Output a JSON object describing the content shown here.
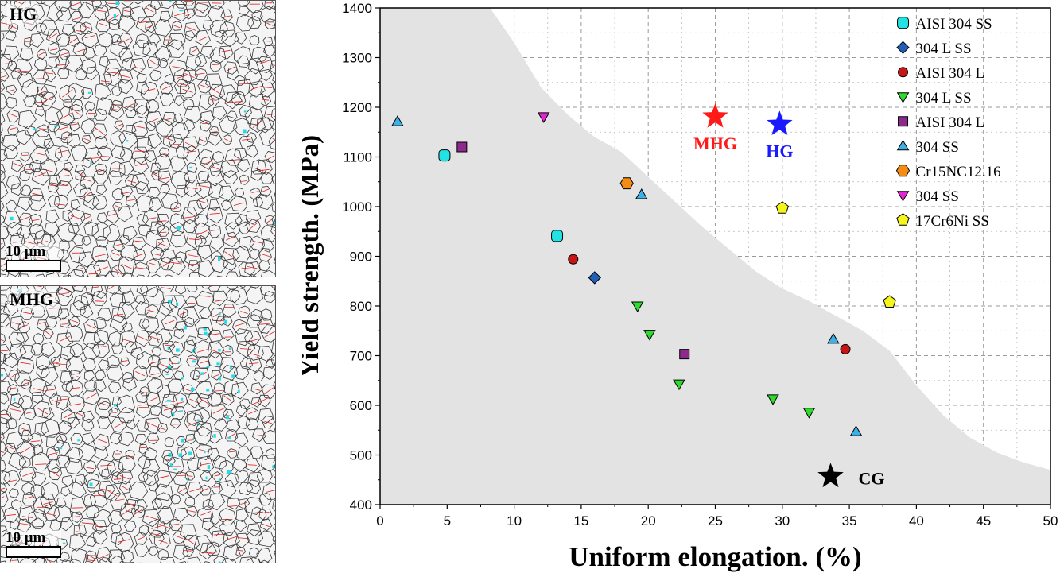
{
  "panels": [
    {
      "label": "HG",
      "scale": "10 μm"
    },
    {
      "label": "MHG",
      "scale": "10 μm"
    }
  ],
  "chart_data": {
    "type": "scatter",
    "xlabel": "Uniform elongation. (%)",
    "ylabel": "Yield strength. (MPa)",
    "xlim": [
      0,
      50
    ],
    "ylim": [
      400,
      1400
    ],
    "xticks": [
      0,
      5,
      10,
      15,
      20,
      25,
      30,
      35,
      40,
      45,
      50
    ],
    "yticks": [
      400,
      500,
      600,
      700,
      800,
      900,
      1000,
      1100,
      1200,
      1300,
      1400
    ],
    "grid": "dashed, right region",
    "legend_position": "top-right",
    "shaded_region": {
      "color": "#e3e3e3",
      "upper_boundary": [
        [
          8.2,
          1400
        ],
        [
          10,
          1330
        ],
        [
          12,
          1240
        ],
        [
          14,
          1185
        ],
        [
          16,
          1140
        ],
        [
          18,
          1110
        ],
        [
          20,
          1060
        ],
        [
          22,
          1010
        ],
        [
          24,
          960
        ],
        [
          26,
          915
        ],
        [
          28,
          870
        ],
        [
          30,
          835
        ],
        [
          32,
          810
        ],
        [
          34,
          780
        ],
        [
          36,
          750
        ],
        [
          38,
          710
        ],
        [
          40,
          640
        ],
        [
          42,
          580
        ],
        [
          44,
          535
        ],
        [
          46,
          505
        ],
        [
          48,
          485
        ],
        [
          50,
          470
        ]
      ]
    },
    "series": [
      {
        "name": "AISI 304 SS",
        "marker": "rounded-square",
        "color": "#22e3e3",
        "points": [
          [
            4.8,
            1103
          ],
          [
            13.2,
            941
          ]
        ]
      },
      {
        "name": "304 L SS",
        "marker": "diamond",
        "color": "#1f5fb5",
        "points": [
          [
            16.0,
            857
          ]
        ]
      },
      {
        "name": "AISI 304 L",
        "marker": "circle",
        "color": "#c81515",
        "points": [
          [
            14.4,
            894
          ],
          [
            34.7,
            713
          ]
        ]
      },
      {
        "name": "304 L SS",
        "marker": "triangle-down",
        "color": "#2ddc2d",
        "points": [
          [
            19.2,
            800
          ],
          [
            20.1,
            743
          ],
          [
            22.3,
            643
          ],
          [
            29.3,
            613
          ],
          [
            32.0,
            586
          ]
        ]
      },
      {
        "name": "AISI 304 L",
        "marker": "square",
        "color": "#8e2a8e",
        "points": [
          [
            6.1,
            1120
          ],
          [
            22.7,
            703
          ]
        ]
      },
      {
        "name": "304 SS",
        "marker": "triangle-up",
        "color": "#3fb0e5",
        "points": [
          [
            1.3,
            1171
          ],
          [
            19.5,
            1024
          ],
          [
            33.8,
            733
          ],
          [
            35.5,
            547
          ]
        ]
      },
      {
        "name": "Cr15NC12.16",
        "marker": "hexagon",
        "color": "#f28c14",
        "points": [
          [
            18.4,
            1047
          ]
        ]
      },
      {
        "name": "304 SS",
        "marker": "triangle-down",
        "color": "#e424d8",
        "points": [
          [
            12.2,
            1181
          ]
        ]
      },
      {
        "name": "17Cr6Ni SS",
        "marker": "pentagon",
        "color": "#f5f51a",
        "points": [
          [
            30.0,
            997
          ],
          [
            38.0,
            808
          ]
        ]
      }
    ],
    "annotations": [
      {
        "text": "MHG",
        "x": 25.0,
        "y": 1181,
        "color": "#ff1a1a"
      },
      {
        "text": "HG",
        "x": 29.8,
        "y": 1166,
        "color": "#1a1aff"
      },
      {
        "text": "CG",
        "x": 33.6,
        "y": 457,
        "color": "#000000"
      }
    ]
  }
}
